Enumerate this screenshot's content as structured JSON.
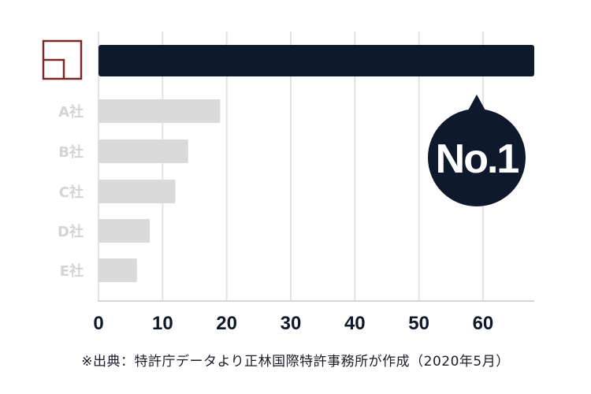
{
  "chart_data": {
    "type": "bar",
    "orientation": "horizontal",
    "categories": [
      "",
      "A社",
      "B社",
      "C社",
      "D社",
      "E社"
    ],
    "values": [
      68,
      19,
      14,
      12,
      8,
      6
    ],
    "xlim": [
      0,
      68
    ],
    "xticks": [
      "0",
      "10",
      "20",
      "30",
      "40",
      "50",
      "60"
    ],
    "grid": true,
    "highlight_color": "#0e1a2b",
    "other_color": "#dadada",
    "logo_color": "#7a2a24",
    "badge_text": "No.1"
  },
  "source_note": "※出典：特許庁データより正林国際特許事務所が作成（2020年5月）"
}
